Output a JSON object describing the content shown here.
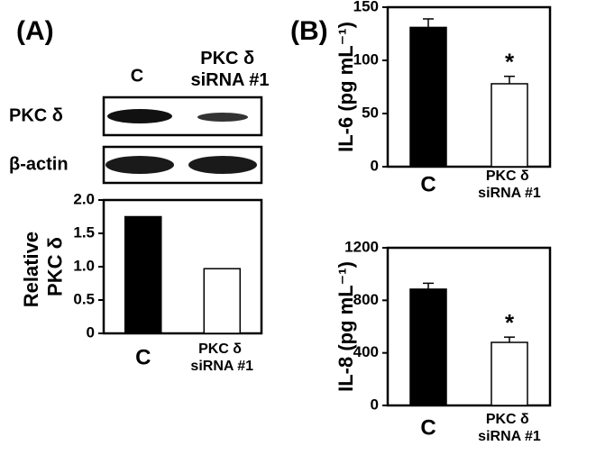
{
  "panel_labels": [
    "(A)",
    "(B)"
  ],
  "blot": {
    "lanes": [
      "C",
      "PKC δ siRNA #1"
    ],
    "rows": [
      "PKC δ",
      "β-actin"
    ]
  },
  "chart_data": [
    {
      "type": "bar",
      "ylabel": "Relative PKC δ",
      "categories": [
        "C",
        "PKC δ siRNA #1"
      ],
      "values": [
        1.75,
        0.97
      ],
      "colors": [
        "#000000",
        "#ffffff"
      ],
      "ylim": [
        0,
        2
      ],
      "yticks": [
        0,
        0.5,
        {
          "value": 1,
          "label": "1.0"
        },
        1.5,
        {
          "value": 2,
          "label": "2.0"
        }
      ]
    },
    {
      "type": "bar",
      "ylabel": "IL-6 (pg mL⁻¹)",
      "categories": [
        "C",
        "PKC δ siRNA #1"
      ],
      "values": [
        131,
        78
      ],
      "errors": [
        8,
        7
      ],
      "colors": [
        "#000000",
        "#ffffff"
      ],
      "ylim": [
        0,
        150
      ],
      "yticks": [
        0,
        50,
        100,
        150
      ],
      "annotation": "*"
    },
    {
      "type": "bar",
      "ylabel": "IL-8 (pg mL⁻¹)",
      "categories": [
        "C",
        "PKC δ siRNA #1"
      ],
      "values": [
        885,
        480
      ],
      "errors": [
        45,
        40
      ],
      "colors": [
        "#000000",
        "#ffffff"
      ],
      "ylim": [
        0,
        1200
      ],
      "yticks": [
        0,
        400,
        800,
        1200
      ],
      "annotation": "*"
    }
  ]
}
